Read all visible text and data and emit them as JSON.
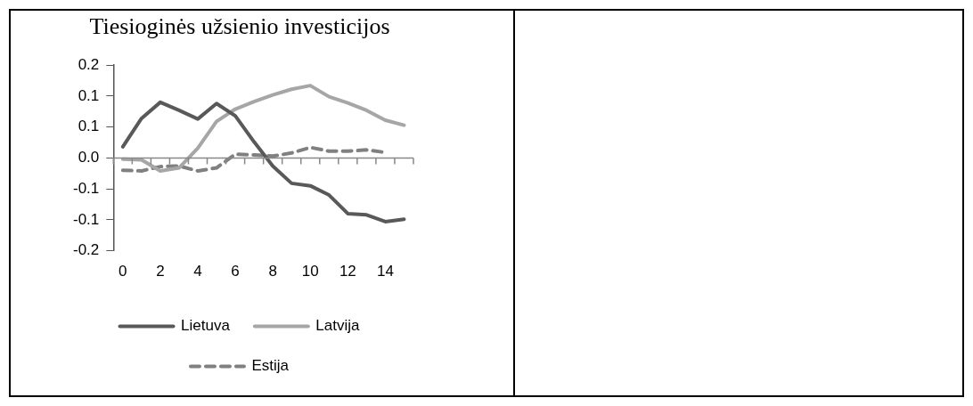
{
  "chart_data": {
    "type": "line",
    "title": "Tiesioginės užsienio investicijos",
    "categories": [
      "0",
      null,
      "2",
      null,
      "4",
      null,
      "6",
      null,
      "8",
      null,
      "10",
      null,
      "12",
      null,
      "14",
      null
    ],
    "series": [
      {
        "name": "Lietuva",
        "color": "#595959",
        "line_style": "solid",
        "values": [
          0.018,
          0.064,
          0.09,
          0.077,
          0.063,
          0.088,
          0.068,
          0.026,
          -0.013,
          -0.041,
          -0.045,
          -0.06,
          -0.09,
          -0.092,
          -0.103,
          -0.099
        ]
      },
      {
        "name": "Latvija",
        "color": "#a6a6a6",
        "line_style": "solid",
        "values": [
          -0.002,
          -0.003,
          -0.021,
          -0.016,
          0.016,
          0.059,
          0.079,
          0.091,
          0.102,
          0.111,
          0.117,
          0.099,
          0.089,
          0.077,
          0.061,
          0.053
        ]
      },
      {
        "name": "Estija",
        "color": "#808080",
        "line_style": "dashed",
        "values": [
          -0.02,
          -0.021,
          -0.014,
          -0.013,
          -0.021,
          -0.016,
          0.006,
          0.005,
          0.003,
          0.008,
          0.017,
          0.011,
          0.011,
          0.013,
          0.009,
          null
        ]
      }
    ],
    "ylim": [
      -0.15,
      0.15
    ],
    "yticks": [
      {
        "value": 0.15,
        "label": "0.2"
      },
      {
        "value": 0.1,
        "label": "0.1"
      },
      {
        "value": 0.05,
        "label": "0.1"
      },
      {
        "value": 0,
        "label": "0.0"
      },
      {
        "value": -0.05,
        "label": "-0.1"
      },
      {
        "value": -0.1,
        "label": "-0.1"
      },
      {
        "value": -0.15,
        "label": "-0.2"
      }
    ],
    "legend": "bottom",
    "marker": "none"
  }
}
